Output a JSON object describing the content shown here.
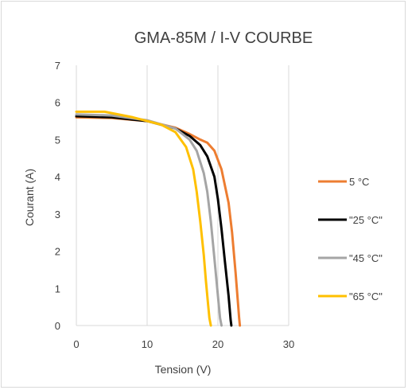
{
  "chart_data": {
    "type": "line",
    "title": "GMA-85M / I-V COURBE",
    "xlabel": "Tension  (V)",
    "ylabel": "Courant  (A)",
    "xlim": [
      0,
      30
    ],
    "ylim": [
      0,
      7
    ],
    "x_ticks": [
      "0",
      "10",
      "20",
      "30"
    ],
    "y_ticks": [
      "0",
      "1",
      "2",
      "3",
      "4",
      "5",
      "6",
      "7"
    ],
    "grid": "vertical",
    "legend_position": "right",
    "series": [
      {
        "name": "5 °C",
        "color": "#ED7D31",
        "x": [
          0,
          5,
          10,
          14,
          16,
          17.5,
          18.5,
          19.5,
          20.5,
          21.5,
          22,
          22.5,
          23,
          23.1
        ],
        "y": [
          5.6,
          5.58,
          5.5,
          5.32,
          5.15,
          5.0,
          4.92,
          4.7,
          4.2,
          3.3,
          2.5,
          1.4,
          0.2,
          0
        ]
      },
      {
        "name": "\"25 °C\"",
        "color": "#000000",
        "x": [
          0,
          5,
          10,
          14,
          16,
          17.5,
          18.5,
          19.5,
          20,
          20.5,
          21,
          21.5,
          21.8,
          21.9
        ],
        "y": [
          5.63,
          5.6,
          5.5,
          5.3,
          5.1,
          4.85,
          4.55,
          4.0,
          3.4,
          2.6,
          1.7,
          0.8,
          0.15,
          0
        ]
      },
      {
        "name": "\"45 °C\"",
        "color": "#A5A5A5",
        "x": [
          0,
          5,
          10,
          14,
          16,
          17,
          18,
          18.5,
          19,
          19.5,
          20,
          20.3,
          20.5
        ],
        "y": [
          5.68,
          5.65,
          5.52,
          5.3,
          5.0,
          4.7,
          4.1,
          3.6,
          2.8,
          1.8,
          0.8,
          0.2,
          0
        ]
      },
      {
        "name": "\"65 °C\"",
        "color": "#FFC000",
        "x": [
          0,
          4,
          8,
          12,
          14,
          15.5,
          16.5,
          17,
          17.5,
          18,
          18.3,
          18.6,
          18.8,
          19.0
        ],
        "y": [
          5.75,
          5.75,
          5.6,
          5.4,
          5.2,
          4.8,
          4.2,
          3.6,
          2.8,
          1.9,
          1.2,
          0.6,
          0.2,
          0
        ]
      }
    ]
  }
}
